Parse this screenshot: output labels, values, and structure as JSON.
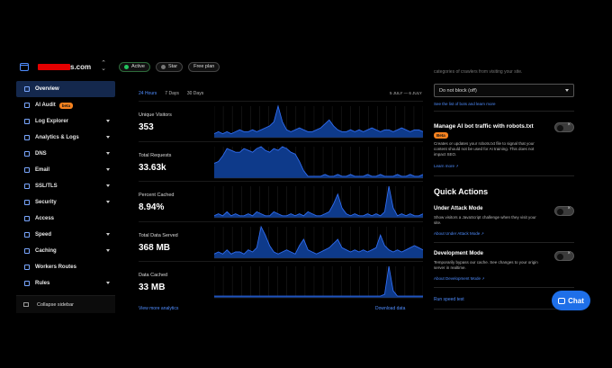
{
  "header": {
    "domain_suffix": "s.com",
    "status_active": "Active",
    "star_label": "Star",
    "plan_label": "Free plan"
  },
  "sidebar": {
    "items": [
      {
        "label": "Overview",
        "icon": "overview-icon",
        "active": true,
        "caret": false
      },
      {
        "label": "AI Audit",
        "icon": "ai-audit-icon",
        "badge": "beta",
        "caret": false
      },
      {
        "label": "Log Explorer",
        "icon": "log-explorer-icon",
        "caret": true
      },
      {
        "label": "Analytics & Logs",
        "icon": "analytics-icon",
        "caret": true
      },
      {
        "label": "DNS",
        "icon": "dns-icon",
        "caret": true
      },
      {
        "label": "Email",
        "icon": "email-icon",
        "caret": true
      },
      {
        "label": "SSL/TLS",
        "icon": "lock-icon",
        "caret": true
      },
      {
        "label": "Security",
        "icon": "shield-icon",
        "caret": true
      },
      {
        "label": "Access",
        "icon": "access-icon",
        "caret": false
      },
      {
        "label": "Speed",
        "icon": "speed-icon",
        "caret": true
      },
      {
        "label": "Caching",
        "icon": "caching-icon",
        "caret": true
      },
      {
        "label": "Workers Routes",
        "icon": "workers-icon",
        "caret": false
      },
      {
        "label": "Rules",
        "icon": "rules-icon",
        "caret": true
      }
    ],
    "collapse_label": "Collapse sidebar"
  },
  "analytics": {
    "tabs": [
      "24 Hours",
      "7 Days",
      "30 Days"
    ],
    "date_range": "5 JULY — 6 JULY",
    "metrics": [
      {
        "label": "Unique Visitors",
        "value": "353"
      },
      {
        "label": "Total Requests",
        "value": "33.63k"
      },
      {
        "label": "Percent Cached",
        "value": "8.94%"
      },
      {
        "label": "Total Data Served",
        "value": "368 MB"
      },
      {
        "label": "Data Cached",
        "value": "33 MB"
      }
    ],
    "view_more": "View more analytics",
    "download": "Download data"
  },
  "bots": {
    "cut_text": "categories of crawlers from visiting your site.",
    "select_value": "Do not block (off)",
    "bots_link": "See the list of bots and learn more",
    "robots_title": "Manage AI bot traffic with robots.txt",
    "robots_badge": "Beta",
    "robots_desc": "Creates or updates your robots.txt file to signal that your content should not be used for AI training. This does not impact SEO.",
    "robots_link": "Learn more"
  },
  "quick_actions": {
    "title": "Quick Actions",
    "attack_title": "Under Attack Mode",
    "attack_desc": "Show visitors a JavaScript challenge when they visit your site.",
    "attack_link": "About Under Attack Mode",
    "dev_title": "Development Mode",
    "dev_desc": "Temporarily bypass our cache. See changes to your origin server in realtime.",
    "dev_link": "About Development Mode",
    "speed_test": "Run speed test"
  },
  "chat_label": "Chat",
  "colors": {
    "accent": "#4f8dff",
    "chart_fill": "#0e3a8a",
    "chart_line": "#2f6cf0",
    "beta": "#f6821f"
  },
  "chart_data": [
    {
      "type": "area",
      "name": "Unique Visitors",
      "values": [
        2,
        3,
        2,
        3,
        2,
        3,
        4,
        3,
        3,
        4,
        3,
        4,
        5,
        6,
        8,
        16,
        8,
        4,
        3,
        4,
        5,
        4,
        3,
        3,
        4,
        5,
        7,
        9,
        6,
        4,
        3,
        3,
        4,
        3,
        4,
        3,
        4,
        5,
        4,
        3,
        4,
        4,
        3,
        4,
        5,
        4,
        3,
        4,
        4,
        3
      ]
    },
    {
      "type": "area",
      "name": "Total Requests",
      "values": [
        8,
        9,
        12,
        16,
        15,
        14,
        14,
        16,
        15,
        14,
        16,
        17,
        15,
        14,
        16,
        15,
        17,
        16,
        14,
        13,
        9,
        4,
        1,
        1,
        1,
        1,
        2,
        1,
        1,
        2,
        1,
        1,
        2,
        1,
        1,
        1,
        2,
        1,
        1,
        2,
        1,
        1,
        1,
        2,
        1,
        1,
        2,
        1,
        1,
        2
      ]
    },
    {
      "type": "area",
      "name": "Percent Cached",
      "values": [
        1,
        2,
        1,
        3,
        1,
        2,
        1,
        1,
        2,
        1,
        3,
        2,
        1,
        1,
        3,
        2,
        1,
        1,
        2,
        1,
        2,
        1,
        3,
        2,
        1,
        1,
        2,
        3,
        7,
        12,
        5,
        2,
        1,
        2,
        1,
        1,
        2,
        1,
        2,
        1,
        3,
        16,
        5,
        1,
        2,
        1,
        2,
        1,
        1,
        2
      ]
    },
    {
      "type": "area",
      "name": "Total Data Served",
      "values": [
        2,
        3,
        2,
        4,
        2,
        3,
        3,
        2,
        4,
        3,
        5,
        15,
        11,
        6,
        3,
        2,
        3,
        4,
        3,
        2,
        6,
        9,
        4,
        3,
        2,
        3,
        4,
        5,
        7,
        9,
        5,
        4,
        3,
        4,
        3,
        4,
        3,
        4,
        5,
        11,
        6,
        4,
        3,
        4,
        3,
        4,
        5,
        6,
        5,
        4
      ]
    },
    {
      "type": "area",
      "name": "Data Cached",
      "values": [
        1,
        1,
        1,
        1,
        1,
        1,
        1,
        1,
        1,
        1,
        1,
        1,
        1,
        1,
        1,
        1,
        1,
        1,
        1,
        1,
        1,
        1,
        1,
        1,
        1,
        1,
        1,
        1,
        1,
        1,
        1,
        1,
        1,
        1,
        1,
        1,
        1,
        1,
        1,
        1,
        2,
        18,
        4,
        1,
        1,
        1,
        1,
        1,
        1,
        1
      ]
    }
  ]
}
